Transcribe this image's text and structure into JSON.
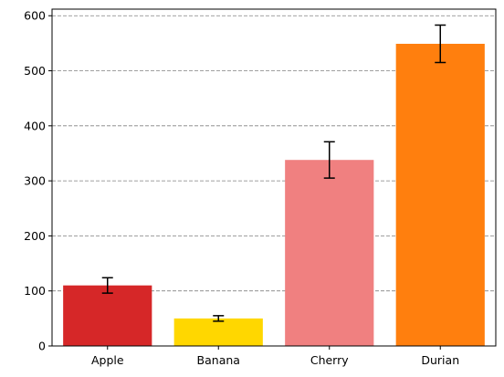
{
  "chart_data": {
    "type": "bar",
    "title": "",
    "xlabel": "",
    "ylabel": "",
    "categories": [
      "Apple",
      "Banana",
      "Cherry",
      "Durian"
    ],
    "values": [
      110,
      50,
      338,
      549
    ],
    "errors": [
      14,
      5,
      33,
      34
    ],
    "colors": [
      "#d62728",
      "#ffd700",
      "#f08080",
      "#ff7f0e"
    ],
    "error_color": "#000000",
    "ylim": [
      0,
      612
    ],
    "yticks": [
      0,
      100,
      200,
      300,
      400,
      500,
      600
    ],
    "grid": {
      "axis": "y",
      "style": "dashed",
      "color": "#808080"
    }
  }
}
